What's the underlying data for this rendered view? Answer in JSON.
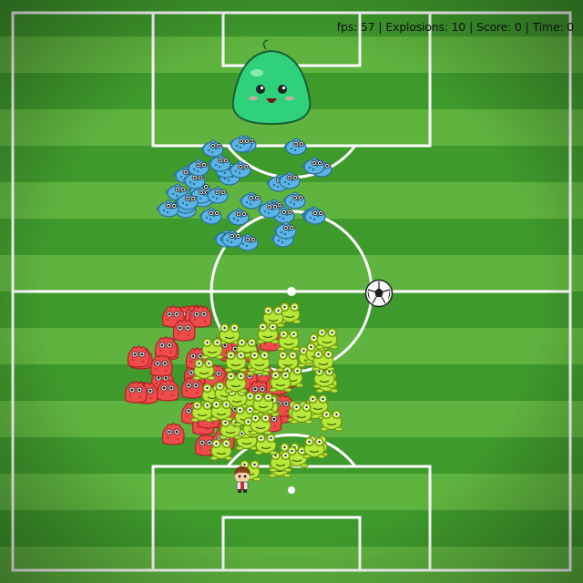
{
  "hud": {
    "fps_label": "fps: 57",
    "explosions_label": "Explosions: 10",
    "score_label": "Score: 0",
    "time_label": "Time: 0",
    "separator": "|"
  },
  "colors": {
    "grass_light": "#5fb43f",
    "grass_dark": "#3f9a2c",
    "line": "#ffffff",
    "boss_slime": "#2fd27a",
    "blue_enemy": "#5bb4e6",
    "red_enemy": "#ef4b4b",
    "yellow_enemy": "#b8e83a"
  },
  "boss": {
    "name": "green-slime-boss",
    "icon": "slime-icon"
  },
  "ball": {
    "icon": "soccer-ball-icon"
  },
  "player": {
    "icon": "player-character-icon"
  },
  "enemy_groups": [
    {
      "name": "blue-fish",
      "icon": "blue-fish-icon",
      "count": 40
    },
    {
      "name": "red-blob",
      "icon": "red-blob-icon",
      "count": 45
    },
    {
      "name": "yellow-frog",
      "icon": "yellow-frog-icon",
      "count": 50
    }
  ]
}
